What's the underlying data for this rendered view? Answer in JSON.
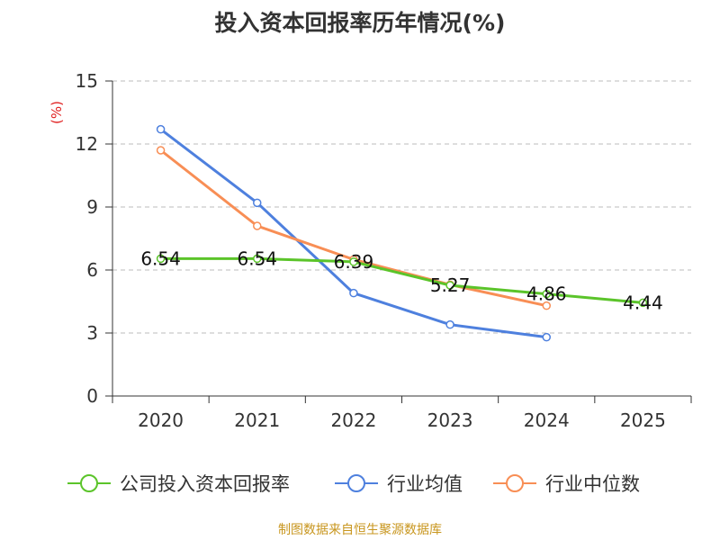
{
  "title": "投入资本回报率历年情况(%)",
  "source": "制图数据来自恒生聚源数据库",
  "chart_data": {
    "type": "line",
    "title": "投入资本回报率历年情况(%)",
    "ylabel": "(%)",
    "xlabel": "",
    "ylim": [
      0,
      15
    ],
    "yticks": [
      0,
      3,
      6,
      9,
      12,
      15
    ],
    "categories": [
      "2020",
      "2021",
      "2022",
      "2023",
      "2024",
      "2025"
    ],
    "grid": true,
    "legend_position": "bottom",
    "series": [
      {
        "name": "公司投入资本回报率",
        "color": "#5bc42a",
        "values": [
          6.54,
          6.54,
          6.39,
          5.27,
          4.86,
          4.44
        ],
        "labels": [
          "6.54",
          "6.54",
          "6.39",
          "5.27",
          "4.86",
          "4.44"
        ]
      },
      {
        "name": "行业均值",
        "color": "#4e80de",
        "values": [
          12.7,
          9.2,
          4.9,
          3.4,
          2.8,
          null
        ]
      },
      {
        "name": "行业中位数",
        "color": "#f88e55",
        "values": [
          11.7,
          8.1,
          6.5,
          5.3,
          4.3,
          null
        ]
      }
    ]
  }
}
